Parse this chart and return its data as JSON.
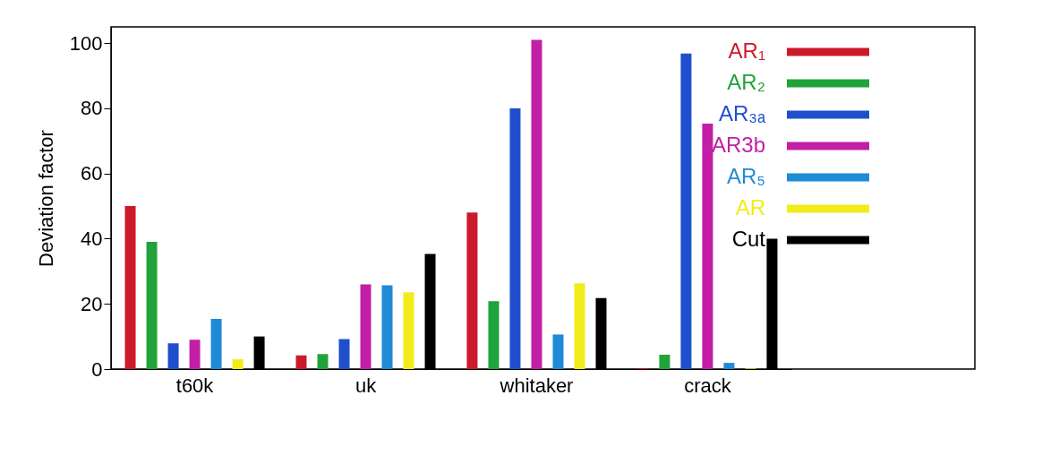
{
  "chart_data": {
    "type": "bar",
    "ylabel": "Deviation factor",
    "categories": [
      "t60k",
      "uk",
      "whitaker",
      "crack"
    ],
    "series": [
      {
        "name": "AR₁",
        "color": "#cc1a2a",
        "values": [
          50,
          4.2,
          48,
          0.3
        ]
      },
      {
        "name": "AR₂",
        "color": "#1fa33a",
        "values": [
          39,
          4.6,
          20.8,
          4.4
        ]
      },
      {
        "name": "AR₃ₐ",
        "color": "#1f4fcc",
        "values": [
          7.9,
          9.2,
          80,
          96.8
        ]
      },
      {
        "name": "AR3b",
        "color": "#c21fa6",
        "values": [
          9,
          26,
          101,
          75.3
        ]
      },
      {
        "name": "AR₅",
        "color": "#1f8ad6",
        "values": [
          15.4,
          25.7,
          10.6,
          1.9
        ]
      },
      {
        "name": "AR",
        "color": "#f2ec1a",
        "values": [
          3,
          23.6,
          26.3,
          0.2
        ]
      },
      {
        "name": "Cut",
        "color": "#000000",
        "values": [
          10,
          35.3,
          21.8,
          40
        ]
      }
    ],
    "ylim": [
      0,
      105
    ],
    "yticks": [
      0,
      20,
      40,
      60,
      80,
      100
    ],
    "grid": false,
    "legend": "top right"
  }
}
